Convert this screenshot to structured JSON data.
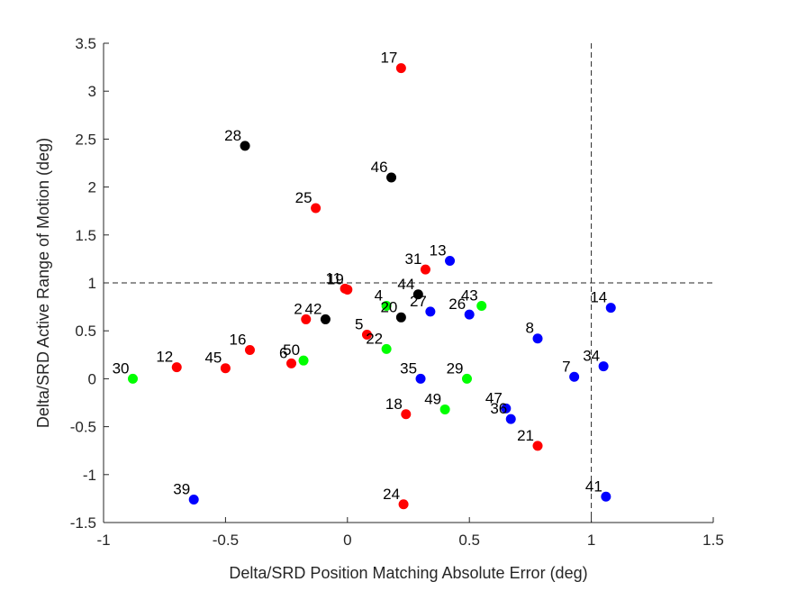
{
  "chart_data": {
    "type": "scatter",
    "title": "",
    "xlabel": "Delta/SRD Position Matching Absolute Error (deg)",
    "ylabel": "Delta/SRD Active Range of Motion (deg)",
    "xlim": [
      -1,
      1.5
    ],
    "ylim": [
      -1.5,
      3.5
    ],
    "xticks": [
      -1,
      -0.5,
      0,
      0.5,
      1,
      1.5
    ],
    "xtick_labels": [
      "-1",
      "-0.5",
      "0",
      "0.5",
      "1",
      "1.5"
    ],
    "yticks": [
      -1.5,
      -1,
      -0.5,
      0,
      0.5,
      1,
      1.5,
      2,
      2.5,
      3,
      3.5
    ],
    "ytick_labels": [
      "-1.5",
      "-1",
      "-0.5",
      "0",
      "0.5",
      "1",
      "1.5",
      "2",
      "2.5",
      "3",
      "3.5"
    ],
    "grid": false,
    "box": false,
    "reference_lines": [
      {
        "orientation": "horizontal",
        "value": 1,
        "style": "dashed"
      },
      {
        "orientation": "vertical",
        "value": 1,
        "style": "dashed"
      }
    ],
    "colors": {
      "red": "#ff0000",
      "blue": "#0000ff",
      "green": "#00ff00",
      "black": "#000000"
    },
    "points": [
      {
        "label": "17",
        "x": 0.22,
        "y": 3.24,
        "color": "red"
      },
      {
        "label": "28",
        "x": -0.42,
        "y": 2.43,
        "color": "black"
      },
      {
        "label": "46",
        "x": 0.18,
        "y": 2.1,
        "color": "black"
      },
      {
        "label": "25",
        "x": -0.13,
        "y": 1.78,
        "color": "red"
      },
      {
        "label": "13",
        "x": 0.42,
        "y": 1.23,
        "color": "blue"
      },
      {
        "label": "31",
        "x": 0.32,
        "y": 1.14,
        "color": "red"
      },
      {
        "label": "11",
        "x": -0.01,
        "y": 0.94,
        "color": "red"
      },
      {
        "label": "19",
        "x": 0.0,
        "y": 0.93,
        "color": "red"
      },
      {
        "label": "44",
        "x": 0.29,
        "y": 0.88,
        "color": "black"
      },
      {
        "label": "4",
        "x": 0.16,
        "y": 0.76,
        "color": "green"
      },
      {
        "label": "43",
        "x": 0.55,
        "y": 0.76,
        "color": "green"
      },
      {
        "label": "14",
        "x": 1.08,
        "y": 0.74,
        "color": "blue"
      },
      {
        "label": "27",
        "x": 0.34,
        "y": 0.7,
        "color": "blue"
      },
      {
        "label": "26",
        "x": 0.5,
        "y": 0.67,
        "color": "blue"
      },
      {
        "label": "20",
        "x": 0.22,
        "y": 0.64,
        "color": "black"
      },
      {
        "label": "2",
        "x": -0.17,
        "y": 0.62,
        "color": "red"
      },
      {
        "label": "42",
        "x": -0.09,
        "y": 0.62,
        "color": "black"
      },
      {
        "label": "5",
        "x": 0.08,
        "y": 0.46,
        "color": "red"
      },
      {
        "label": "8",
        "x": 0.78,
        "y": 0.42,
        "color": "blue"
      },
      {
        "label": "22",
        "x": 0.16,
        "y": 0.31,
        "color": "green"
      },
      {
        "label": "16",
        "x": -0.4,
        "y": 0.3,
        "color": "red"
      },
      {
        "label": "50",
        "x": -0.18,
        "y": 0.19,
        "color": "green"
      },
      {
        "label": "6",
        "x": -0.23,
        "y": 0.16,
        "color": "red"
      },
      {
        "label": "34",
        "x": 1.05,
        "y": 0.13,
        "color": "blue"
      },
      {
        "label": "12",
        "x": -0.7,
        "y": 0.12,
        "color": "red"
      },
      {
        "label": "45",
        "x": -0.5,
        "y": 0.11,
        "color": "red"
      },
      {
        "label": "7",
        "x": 0.93,
        "y": 0.02,
        "color": "blue"
      },
      {
        "label": "30",
        "x": -0.88,
        "y": 0.0,
        "color": "green"
      },
      {
        "label": "35",
        "x": 0.3,
        "y": 0.0,
        "color": "blue"
      },
      {
        "label": "29",
        "x": 0.49,
        "y": 0.0,
        "color": "green"
      },
      {
        "label": "49",
        "x": 0.4,
        "y": -0.32,
        "color": "green"
      },
      {
        "label": "47",
        "x": 0.65,
        "y": -0.31,
        "color": "blue"
      },
      {
        "label": "36",
        "x": 0.67,
        "y": -0.42,
        "color": "blue"
      },
      {
        "label": "18",
        "x": 0.24,
        "y": -0.37,
        "color": "red"
      },
      {
        "label": "21",
        "x": 0.78,
        "y": -0.7,
        "color": "red"
      },
      {
        "label": "41",
        "x": 1.06,
        "y": -1.23,
        "color": "blue"
      },
      {
        "label": "39",
        "x": -0.63,
        "y": -1.26,
        "color": "blue"
      },
      {
        "label": "24",
        "x": 0.23,
        "y": -1.31,
        "color": "red"
      }
    ]
  }
}
